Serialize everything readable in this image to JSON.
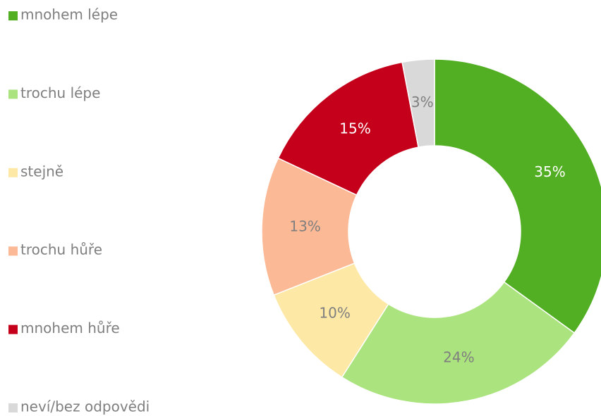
{
  "chart_data": {
    "type": "donut",
    "categories": [
      "mnohem lépe",
      "trochu lépe",
      "stejně",
      "trochu hůře",
      "mnohem hůře",
      "neví/bez odpovědi"
    ],
    "values": [
      35,
      24,
      10,
      13,
      15,
      3
    ],
    "value_labels": [
      "35%",
      "24%",
      "10%",
      "13%",
      "15%",
      "3%"
    ],
    "colors": [
      "#52ae22",
      "#abe37f",
      "#fde8a6",
      "#fbb995",
      "#c4001a",
      "#d9d9d9"
    ],
    "legend": "left"
  }
}
